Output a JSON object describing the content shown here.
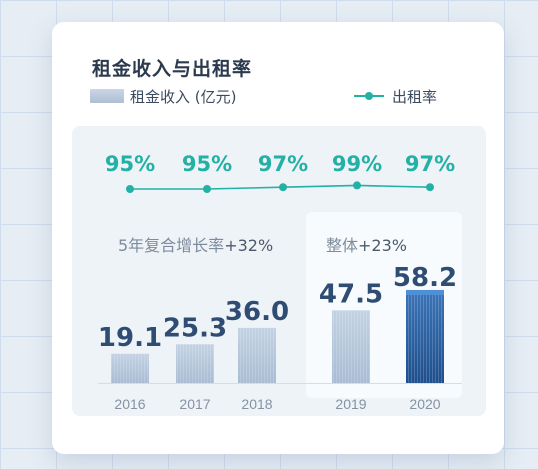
{
  "chart_data": {
    "type": "bar",
    "title": "租金收入与出租率",
    "categories": [
      "2016",
      "2017",
      "2018",
      "2019",
      "2020"
    ],
    "series": [
      {
        "name": "租金收入 (亿元)",
        "type": "bar",
        "values": [
          19.1,
          25.3,
          36.0,
          47.5,
          58.2
        ]
      },
      {
        "name": "出租率",
        "type": "line",
        "values": [
          95,
          95,
          97,
          99,
          97
        ]
      }
    ],
    "bar_labels": [
      "19.1",
      "25.3",
      "36.0",
      "47.5",
      "58.2"
    ],
    "rate_labels": [
      "95%",
      "95%",
      "97%",
      "99%",
      "97%"
    ],
    "annotations": {
      "cagr_text": "5年复合增长率",
      "cagr_value": "+32%",
      "overall_text": "整体",
      "overall_value": "+23%"
    },
    "legend_position": "top",
    "colors": {
      "bar": "#b7c8dc",
      "bar_highlight": "#2d64a6",
      "rate_line": "#22b1a4",
      "value_label": "#2f4d72"
    }
  }
}
